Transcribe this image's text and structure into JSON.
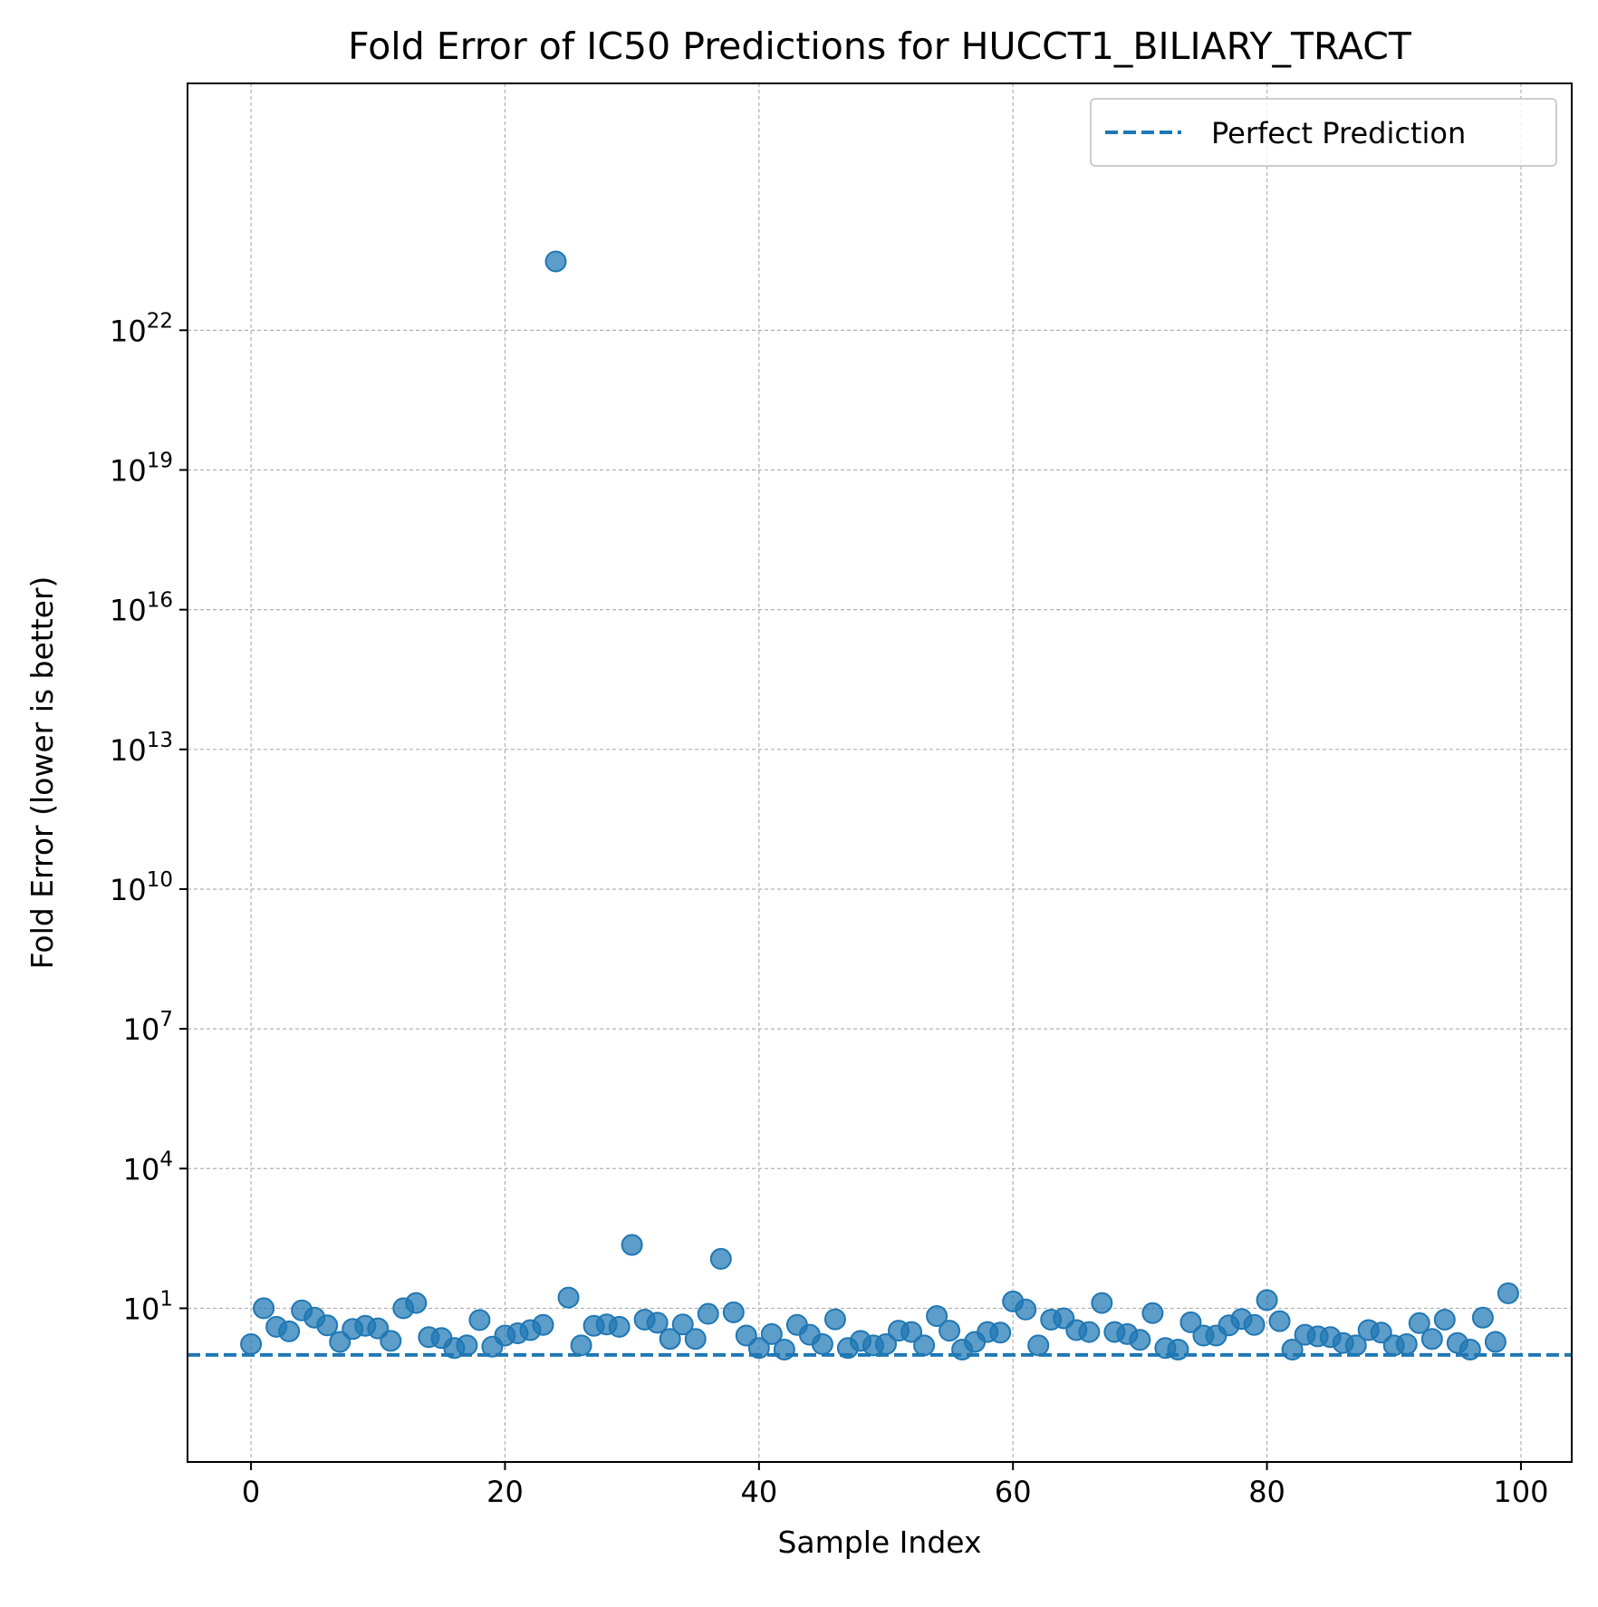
{
  "chart_data": {
    "type": "scatter",
    "title": "Fold Error of IC50 Predictions for HUCCT1_BILIARY_TRACT",
    "xlabel": "Sample Index",
    "ylabel": "Fold Error (lower is better)",
    "xlim": [
      -5,
      104
    ],
    "ylim_log10": [
      -2.3,
      27.3
    ],
    "yscale": "log",
    "grid": true,
    "legend_position": "top-right",
    "x_ticks": [
      {
        "value": 0,
        "label": "0"
      },
      {
        "value": 20,
        "label": "20"
      },
      {
        "value": 40,
        "label": "40"
      },
      {
        "value": 60,
        "label": "60"
      },
      {
        "value": 80,
        "label": "80"
      },
      {
        "value": 100,
        "label": "100"
      }
    ],
    "y_ticks": [
      {
        "log10": 1,
        "base": "10",
        "exp": "1"
      },
      {
        "log10": 4,
        "base": "10",
        "exp": "4"
      },
      {
        "log10": 7,
        "base": "10",
        "exp": "7"
      },
      {
        "log10": 10,
        "base": "10",
        "exp": "10"
      },
      {
        "log10": 13,
        "base": "10",
        "exp": "13"
      },
      {
        "log10": 16,
        "base": "10",
        "exp": "16"
      },
      {
        "log10": 19,
        "base": "10",
        "exp": "19"
      },
      {
        "log10": 22,
        "base": "10",
        "exp": "22"
      }
    ],
    "reference_line": {
      "name": "Perfect Prediction",
      "y": 1,
      "color": "#1f77b4",
      "style": "dashed"
    },
    "series": [
      {
        "name": "",
        "color": "#1f77b4",
        "x": [
          0,
          1,
          2,
          3,
          4,
          5,
          6,
          7,
          8,
          9,
          10,
          11,
          12,
          13,
          14,
          15,
          16,
          17,
          18,
          19,
          20,
          21,
          22,
          23,
          24,
          25,
          26,
          27,
          28,
          29,
          30,
          31,
          32,
          33,
          34,
          35,
          36,
          37,
          38,
          39,
          40,
          41,
          42,
          43,
          44,
          45,
          46,
          47,
          48,
          49,
          50,
          51,
          52,
          53,
          54,
          55,
          56,
          57,
          58,
          59,
          60,
          61,
          62,
          63,
          64,
          65,
          66,
          67,
          68,
          69,
          70,
          71,
          72,
          73,
          74,
          75,
          76,
          77,
          78,
          79,
          80,
          81,
          82,
          83,
          84,
          85,
          86,
          87,
          88,
          89,
          90,
          91,
          92,
          93,
          94,
          95,
          96,
          97,
          98,
          99
        ],
        "y": [
          1.7,
          10,
          4.0,
          3.2,
          9.0,
          6.3,
          4.3,
          1.9,
          3.6,
          4.2,
          3.7,
          2.0,
          10,
          13,
          2.4,
          2.3,
          1.4,
          1.6,
          5.6,
          1.5,
          2.6,
          2.9,
          3.4,
          4.4,
          3e+23,
          17,
          1.6,
          4.2,
          4.5,
          4.0,
          230,
          5.7,
          4.9,
          2.2,
          4.5,
          2.2,
          7.6,
          115,
          8.2,
          2.6,
          1.4,
          2.8,
          1.3,
          4.4,
          2.7,
          1.7,
          5.8,
          1.4,
          2.0,
          1.6,
          1.7,
          3.3,
          3.1,
          1.6,
          6.8,
          3.3,
          1.3,
          1.9,
          3.1,
          3.0,
          14,
          9.4,
          1.6,
          5.7,
          6.1,
          3.4,
          3.1,
          13,
          3.1,
          2.8,
          2.1,
          7.9,
          1.4,
          1.3,
          5.0,
          2.6,
          2.6,
          4.3,
          5.9,
          4.4,
          15,
          5.3,
          1.3,
          2.7,
          2.5,
          2.4,
          1.8,
          1.6,
          3.4,
          3.0,
          1.6,
          1.7,
          4.8,
          2.2,
          5.7,
          1.8,
          1.3,
          6.3,
          1.9,
          21
        ]
      }
    ]
  }
}
